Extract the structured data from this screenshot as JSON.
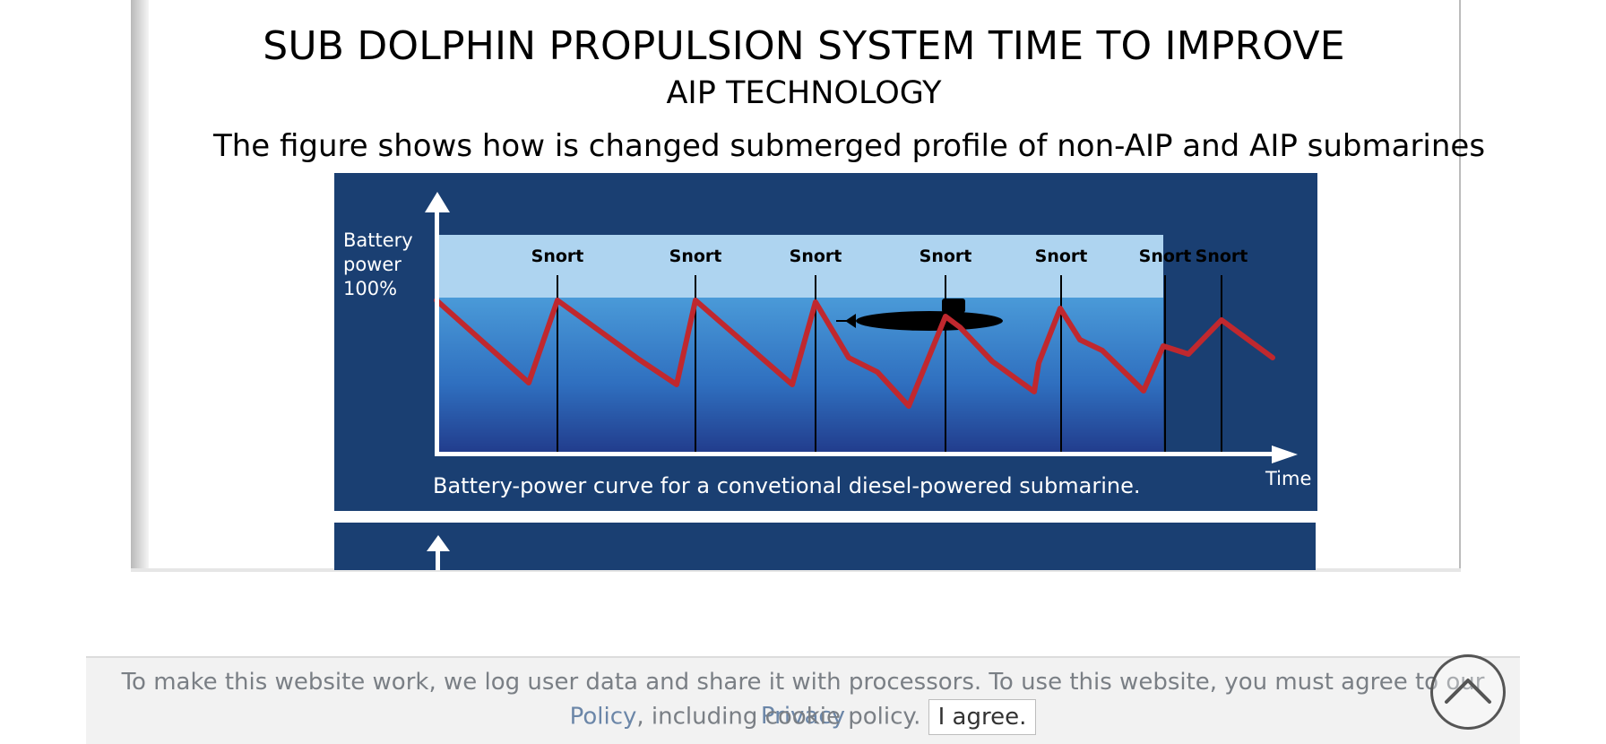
{
  "slide": {
    "title": "SUB DOLPHIN PROPULSION SYSTEM TIME TO IMPROVE",
    "subtitle": "AIP TECHNOLOGY",
    "caption": "The figure shows how is changed submerged profile of non-AIP and AIP submarines"
  },
  "figure": {
    "y_label_line1": "Battery",
    "y_label_line2": "power",
    "y_label_line3": "100%",
    "x_label": "Time",
    "snort_labels": [
      "Snort",
      "Snort",
      "Snort",
      "Snort",
      "Snort",
      "Snort",
      "Snort"
    ],
    "description": "Battery-power curve for a convetional diesel-powered submarine.",
    "colors": {
      "panel": "#1a3f72",
      "surface_band": "#aed4f0",
      "water_top": "#4a9ad8",
      "water_bottom": "#213a8a",
      "curve": "#c0282e"
    }
  },
  "cookie": {
    "text_before": "To make this website work, we log user data and share it with processors. To use this website, you must agree to our ",
    "link_part1": "Privacy",
    "link_part2": "Policy",
    "text_after": ", including cookie policy.",
    "agree_label": "I agree."
  },
  "scroll_top": {
    "icon": "chevron-up-icon"
  }
}
